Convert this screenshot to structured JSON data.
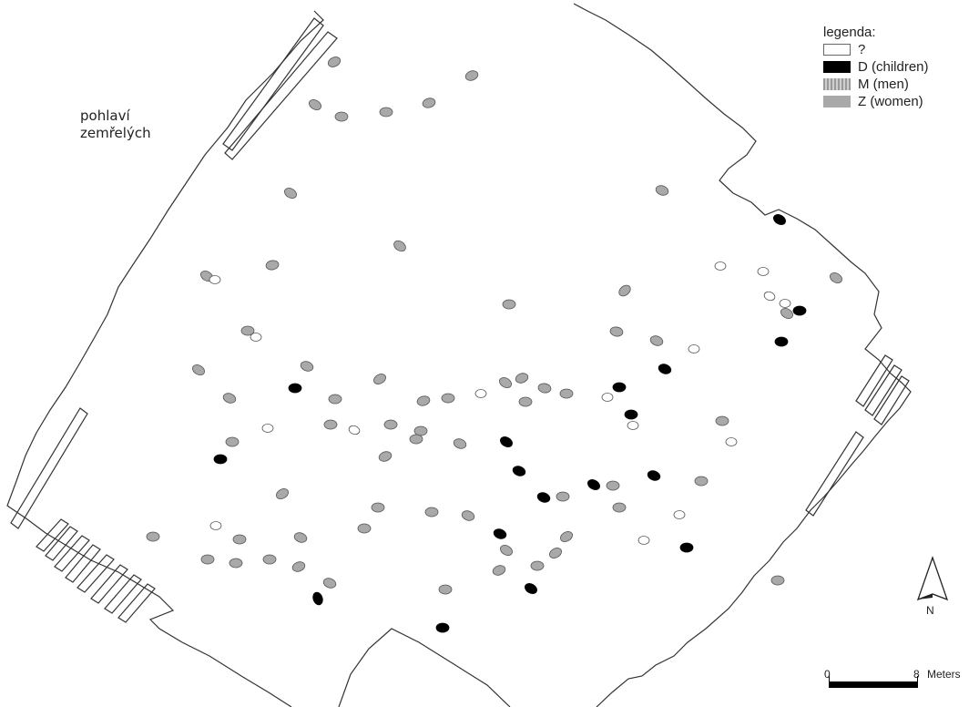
{
  "caption": {
    "line1": "pohlaví",
    "line2": "zemřelých"
  },
  "legend": {
    "title": "legenda:",
    "items": [
      {
        "key": "unknown",
        "label": "?",
        "fill": "#ffffff"
      },
      {
        "key": "children",
        "label": "D (children)",
        "fill": "#000000"
      },
      {
        "key": "men",
        "label": "M (men)",
        "fill": "#b5b5b5"
      },
      {
        "key": "women",
        "label": "Z (women)",
        "fill": "#a9a9a9"
      }
    ]
  },
  "north_arrow": {
    "label": "N"
  },
  "scale": {
    "start_label": "0",
    "end_label": "8",
    "unit": "Meters"
  },
  "colors": {
    "outline": "#333333",
    "grave_women": "#a9a9a9",
    "grave_men": "#b8b8b8",
    "grave_children": "#000000",
    "grave_unknown": "#ffffff"
  }
}
